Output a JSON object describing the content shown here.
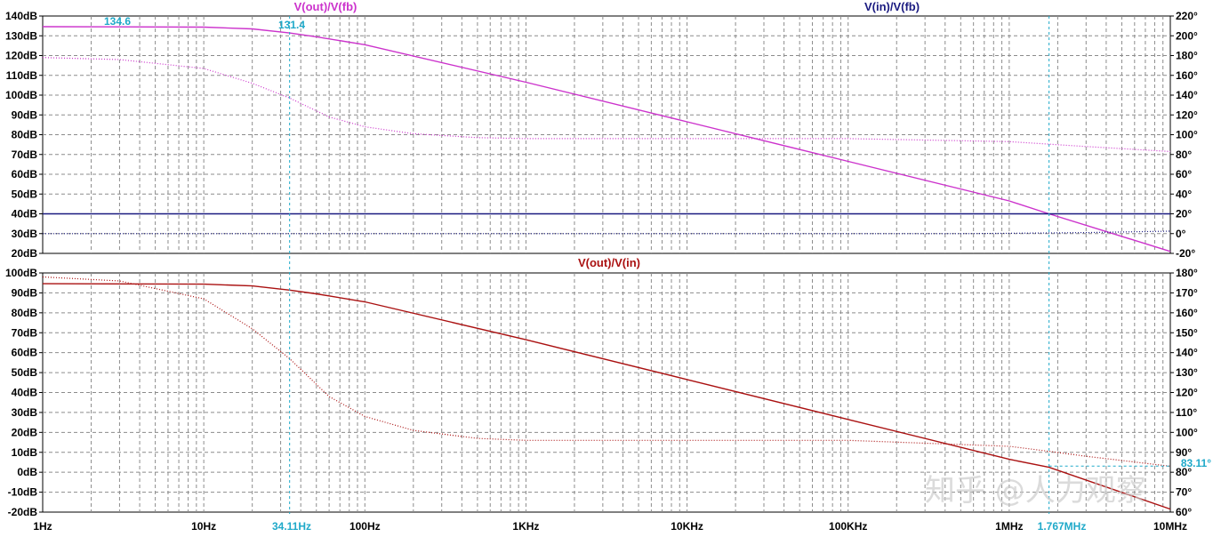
{
  "chart_data": [
    {
      "type": "line",
      "title": "",
      "x_scale": "log",
      "xlim": [
        1,
        10000000
      ],
      "ylim": [
        20,
        140
      ],
      "y2lim": [
        -20,
        220
      ],
      "left_ticks": [
        "140dB",
        "130dB",
        "120dB",
        "110dB",
        "100dB",
        "90dB",
        "80dB",
        "70dB",
        "60dB",
        "50dB",
        "40dB",
        "30dB",
        "20dB"
      ],
      "right_ticks": [
        "220°",
        "200°",
        "180°",
        "160°",
        "140°",
        "120°",
        "100°",
        "80°",
        "60°",
        "40°",
        "20°",
        "0°",
        "-20°"
      ],
      "series": [
        {
          "name": "V(out)/V(fb)",
          "color": "#cc33cc",
          "axis": "left",
          "style": "solid",
          "x": [
            1,
            10,
            20,
            34.11,
            50,
            100,
            1000,
            10000,
            100000,
            1000000,
            1767000,
            10000000
          ],
          "y": [
            134.6,
            134.4,
            133.5,
            131.4,
            129.5,
            125.5,
            106.5,
            86.5,
            66.5,
            46.5,
            40.0,
            21.0
          ]
        },
        {
          "name": "V(out)/V(fb) phase",
          "color": "#cc33cc",
          "axis": "right",
          "style": "dotted",
          "x": [
            1,
            3,
            10,
            20,
            34.11,
            60,
            100,
            200,
            500,
            1000,
            10000,
            100000,
            1000000,
            3000000,
            10000000
          ],
          "y": [
            178,
            176,
            167,
            152,
            137,
            118,
            108,
            101,
            97,
            96,
            96,
            96,
            93,
            88,
            83
          ]
        },
        {
          "name": "V(in)/V(fb)",
          "color": "#1a1a80",
          "axis": "left",
          "style": "solid",
          "x": [
            1,
            10000000
          ],
          "y": [
            40,
            40
          ]
        },
        {
          "name": "V(in)/V(fb) phase",
          "color": "#1a1a80",
          "axis": "right",
          "style": "dotted",
          "x": [
            1,
            500000,
            1000000,
            3000000,
            10000000
          ],
          "y": [
            0,
            0,
            0.3,
            1,
            2.5
          ]
        }
      ],
      "cursors": [
        {
          "x": 34.11,
          "label": "131.4"
        },
        {
          "x": 1767000
        }
      ],
      "marker_labels": [
        {
          "x": 2.9,
          "text": "134.6"
        }
      ]
    },
    {
      "type": "line",
      "title": "",
      "x_scale": "log",
      "xlim": [
        1,
        10000000
      ],
      "ylim": [
        -20,
        100
      ],
      "y2lim": [
        60,
        180
      ],
      "left_ticks": [
        "100dB",
        "90dB",
        "80dB",
        "70dB",
        "60dB",
        "50dB",
        "40dB",
        "30dB",
        "20dB",
        "10dB",
        "0dB",
        "-10dB",
        "-20dB"
      ],
      "right_ticks": [
        "180°",
        "170°",
        "160°",
        "150°",
        "140°",
        "130°",
        "120°",
        "110°",
        "100°",
        "90°",
        "80°",
        "70°",
        "60°"
      ],
      "x_ticks": [
        "1Hz",
        "10Hz",
        "100Hz",
        "1KHz",
        "10KHz",
        "100KHz",
        "1MHz",
        "10MHz"
      ],
      "cursor_x_labels": [
        "34.11Hz",
        "1.767MHz"
      ],
      "phase_cursor_label": "83.11°",
      "phase_cursor_value": 83.11,
      "series": [
        {
          "name": "V(out)/V(in)",
          "color": "#aa1111",
          "axis": "left",
          "style": "solid",
          "x": [
            1,
            10,
            20,
            34.11,
            50,
            100,
            1000,
            10000,
            100000,
            1000000,
            1767000,
            10000000
          ],
          "y": [
            94.6,
            94.4,
            93.5,
            91.4,
            89.5,
            85.5,
            66.5,
            46.5,
            26.5,
            6.5,
            2.5,
            -18.5
          ]
        },
        {
          "name": "V(out)/V(in) phase",
          "color": "#aa1111",
          "axis": "right",
          "style": "dotted",
          "x": [
            1,
            3,
            10,
            20,
            34.11,
            60,
            100,
            200,
            500,
            1000,
            10000,
            100000,
            1000000,
            1767000,
            3000000,
            10000000
          ],
          "y": [
            178,
            176,
            167,
            152,
            137,
            118,
            108,
            101,
            97,
            96,
            96,
            96,
            93,
            90.5,
            88,
            83
          ]
        }
      ]
    }
  ],
  "watermark": "知乎 @人力观察"
}
